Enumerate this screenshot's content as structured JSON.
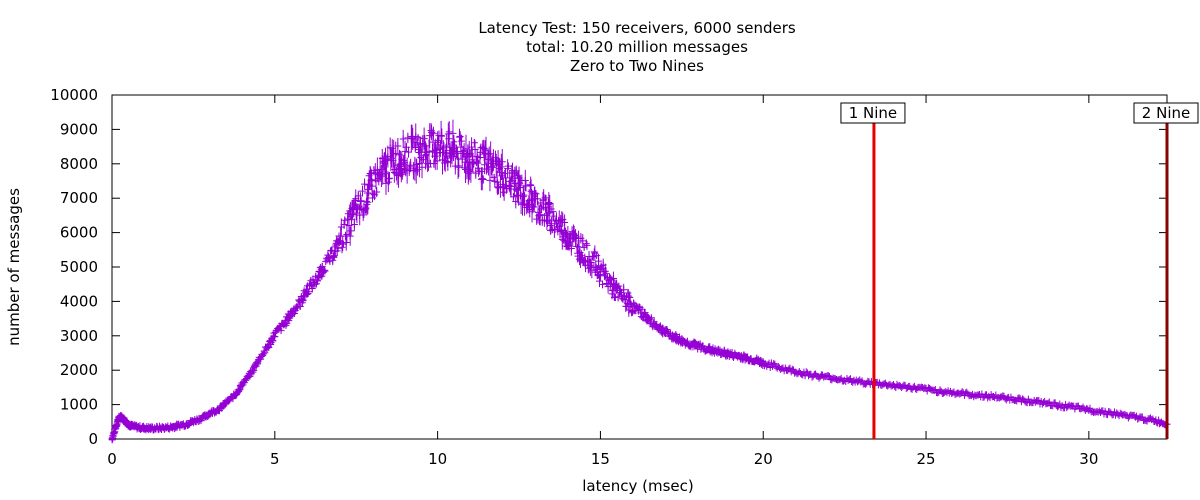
{
  "chart_data": {
    "type": "scatter",
    "title_lines": [
      "Latency Test: 150 receivers, 6000 senders",
      "total: 10.20 million messages",
      "Zero to Two Nines"
    ],
    "xlabel": "latency (msec)",
    "ylabel": "number of messages",
    "xlim": [
      0,
      32.4
    ],
    "ylim": [
      0,
      10000
    ],
    "x_ticks": [
      0,
      5,
      10,
      15,
      20,
      25,
      30
    ],
    "y_ticks": [
      0,
      1000,
      2000,
      3000,
      4000,
      5000,
      6000,
      7000,
      8000,
      9000,
      10000
    ],
    "grid": false,
    "point_marker": "+",
    "series": [
      {
        "color": "#9400d3",
        "x": [
          0.0,
          0.1,
          0.2,
          0.3,
          0.4,
          0.5,
          0.6,
          0.8,
          1.0,
          1.2,
          1.5,
          1.8,
          2.0,
          2.3,
          2.5,
          2.8,
          3.0,
          3.3,
          3.5,
          3.8,
          4.0,
          4.3,
          4.5,
          4.8,
          5.0,
          5.3,
          5.5,
          5.8,
          6.0,
          6.3,
          6.5,
          6.8,
          7.0,
          7.3,
          7.5,
          7.8,
          8.0,
          8.3,
          8.5,
          8.8,
          9.0,
          9.3,
          9.5,
          9.8,
          10.0,
          10.3,
          10.5,
          10.8,
          11.0,
          11.3,
          11.5,
          11.8,
          12.0,
          12.3,
          12.5,
          12.8,
          13.0,
          13.3,
          13.5,
          13.8,
          14.0,
          14.3,
          14.5,
          14.8,
          15.0,
          15.3,
          15.5,
          15.8,
          16.0,
          16.3,
          16.5,
          16.8,
          17.0,
          17.3,
          17.5,
          17.8,
          18.0,
          18.3,
          18.5,
          18.8,
          19.0,
          19.3,
          19.5,
          19.8,
          20.0,
          20.5,
          21.0,
          21.5,
          22.0,
          22.5,
          23.0,
          23.5,
          24.0,
          24.5,
          25.0,
          25.5,
          26.0,
          26.5,
          27.0,
          27.5,
          28.0,
          28.5,
          29.0,
          29.5,
          30.0,
          30.5,
          31.0,
          31.5,
          32.0,
          32.4
        ],
        "y": [
          0,
          300,
          600,
          650,
          520,
          430,
          380,
          340,
          320,
          310,
          320,
          340,
          380,
          440,
          520,
          620,
          750,
          880,
          1050,
          1300,
          1600,
          1950,
          2300,
          2700,
          3050,
          3350,
          3650,
          4000,
          4350,
          4650,
          5000,
          5400,
          5800,
          6250,
          6650,
          7050,
          7400,
          7700,
          7950,
          8150,
          8250,
          8300,
          8350,
          8450,
          8500,
          8450,
          8350,
          8250,
          8150,
          8050,
          7950,
          7800,
          7650,
          7450,
          7250,
          7050,
          6850,
          6650,
          6400,
          6150,
          5900,
          5650,
          5400,
          5150,
          4850,
          4550,
          4250,
          4050,
          3850,
          3650,
          3450,
          3250,
          3100,
          2950,
          2850,
          2750,
          2700,
          2620,
          2550,
          2500,
          2450,
          2400,
          2350,
          2280,
          2200,
          2080,
          1960,
          1860,
          1790,
          1720,
          1660,
          1610,
          1560,
          1500,
          1440,
          1380,
          1330,
          1280,
          1240,
          1190,
          1130,
          1060,
          990,
          920,
          850,
          780,
          700,
          620,
          540,
          430
        ]
      }
    ],
    "reference_lines": [
      {
        "label": "1 Nine",
        "x": 23.4,
        "color": "#e60000"
      },
      {
        "label": "2 Nine",
        "x": 32.4,
        "color": "#8b0000"
      }
    ]
  }
}
